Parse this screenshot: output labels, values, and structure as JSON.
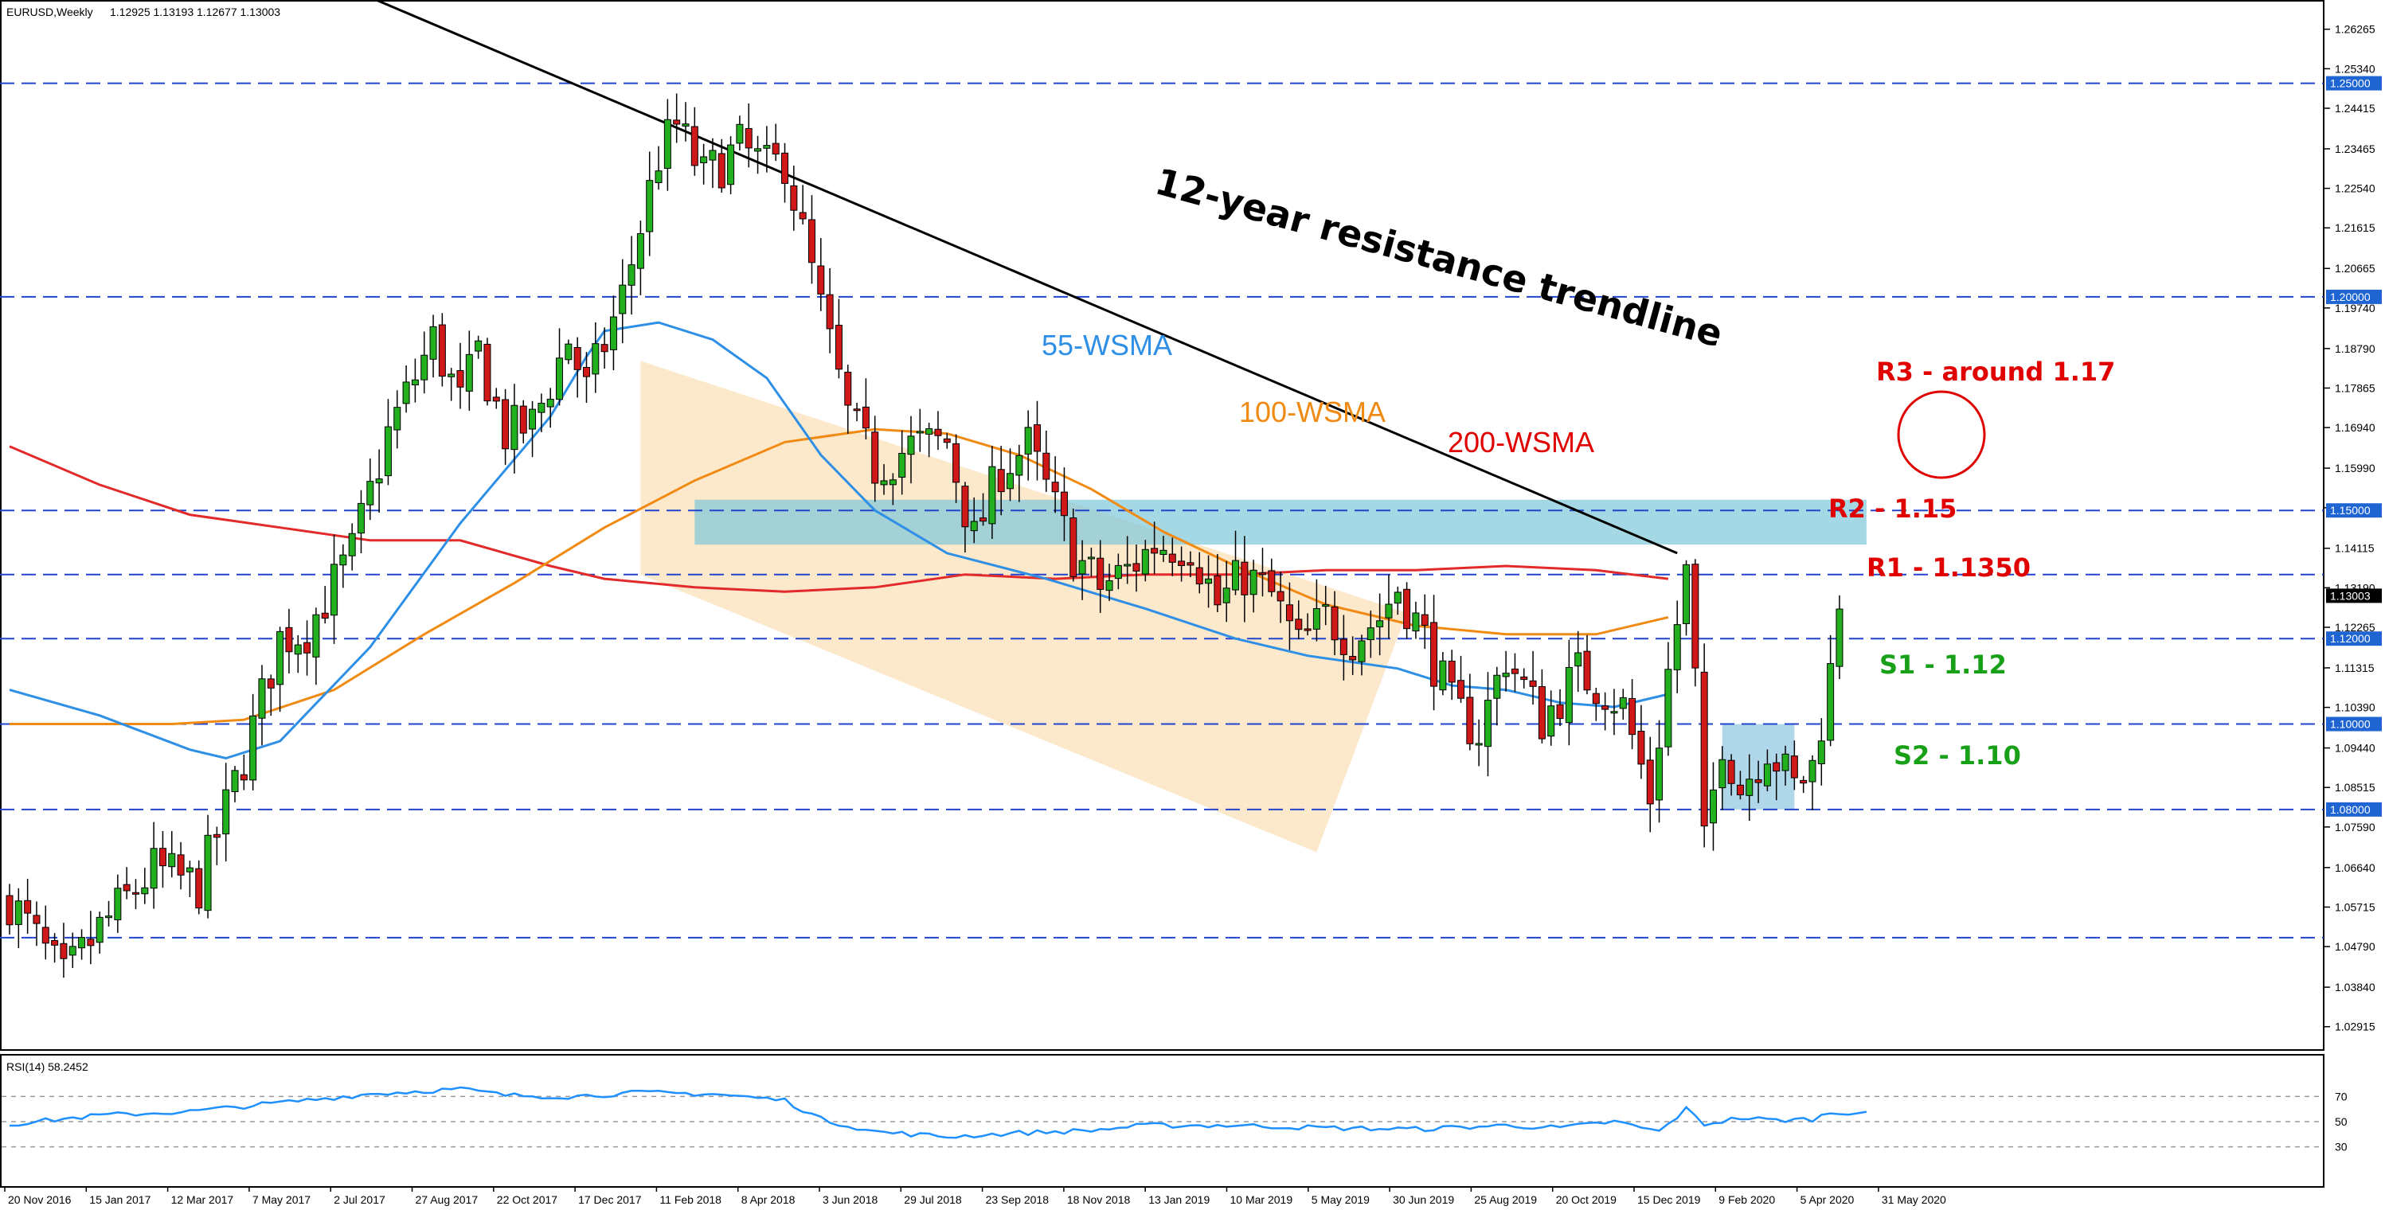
{
  "chart_header": {
    "symbol_line": "EURUSD,Weekly",
    "ohlc": "1.12925 1.13193 1.12677 1.13003"
  },
  "rsi_header": "RSI(14) 58.2452",
  "colors": {
    "bull": "#22b01e",
    "bear": "#d01818",
    "wsma55": "#2e8fe6",
    "wsma100": "#f08a12",
    "wsma200": "#e32a2a",
    "trendline": "#000000",
    "grid_dash": "#2244cc",
    "zone_resistance": "#7dc8d8",
    "zone_support": "#8ec6e0",
    "channel": "#fbe4c2",
    "rsi_line": "#1e90ff",
    "label_red": "#e00000",
    "label_green": "#19a019",
    "label_blue": "#2e8fe6",
    "label_orange": "#f08a12"
  },
  "chart_data": {
    "type": "candlestick",
    "title": "EURUSD,Weekly",
    "interval": "weekly",
    "ylim": [
      1.025,
      1.268
    ],
    "y_ticks": [
      "1.26265",
      "1.25340",
      "1.24415",
      "1.23465",
      "1.22540",
      "1.21615",
      "1.20665",
      "1.19740",
      "1.18790",
      "1.17865",
      "1.16940",
      "1.15990",
      "1.15065",
      "1.14115",
      "1.13190",
      "1.12265",
      "1.11315",
      "1.10390",
      "1.09440",
      "1.08515",
      "1.07590",
      "1.06640",
      "1.05715",
      "1.04790",
      "1.03840",
      "1.02915"
    ],
    "x_ticks": [
      "20 Nov 2016",
      "15 Jan 2017",
      "12 Mar 2017",
      "7 May 2017",
      "2 Jul 2017",
      "27 Aug 2017",
      "22 Oct 2017",
      "17 Dec 2017",
      "11 Feb 2018",
      "8 Apr 2018",
      "3 Jun 2018",
      "29 Jul 2018",
      "23 Sep 2018",
      "18 Nov 2018",
      "13 Jan 2019",
      "10 Mar 2019",
      "5 May 2019",
      "30 Jun 2019",
      "25 Aug 2019",
      "20 Oct 2019",
      "15 Dec 2019",
      "9 Feb 2020",
      "5 Apr 2020",
      "31 May 2020"
    ],
    "horizontal_levels": [
      {
        "value": 1.25,
        "label": "1.25000"
      },
      {
        "value": 1.2,
        "label": "1.20000"
      },
      {
        "value": 1.15,
        "label": "1.15000"
      },
      {
        "value": 1.135,
        "label": ""
      },
      {
        "value": 1.12,
        "label": "1.12000"
      },
      {
        "value": 1.1,
        "label": "1.10000"
      },
      {
        "value": 1.08,
        "label": "1.08000"
      },
      {
        "value": 1.05,
        "label": ""
      }
    ],
    "current_price": "1.13003",
    "annotations": {
      "trendline": "12-year resistance trendline",
      "wsma55": "55-WSMA",
      "wsma100": "100-WSMA",
      "wsma200": "200-WSMA",
      "r3": "R3 - around 1.17",
      "r2": "R2 - 1.15",
      "r1": "R1 - 1.1350",
      "s1": "S1 - 1.12",
      "s2": "S2 - 1.10"
    },
    "trendline_points": [
      {
        "week": 0,
        "price": 1.306
      },
      {
        "week": 185,
        "price": 1.14
      }
    ],
    "anchors": [
      [
        0,
        1.059
      ],
      [
        6,
        1.04
      ],
      [
        10,
        1.052
      ],
      [
        16,
        1.066
      ],
      [
        21,
        1.062
      ],
      [
        26,
        1.092
      ],
      [
        30,
        1.12
      ],
      [
        33,
        1.122
      ],
      [
        38,
        1.14
      ],
      [
        42,
        1.168
      ],
      [
        47,
        1.19
      ],
      [
        50,
        1.175
      ],
      [
        52,
        1.187
      ],
      [
        55,
        1.168
      ],
      [
        58,
        1.17
      ],
      [
        62,
        1.19
      ],
      [
        64,
        1.178
      ],
      [
        68,
        1.2
      ],
      [
        72,
        1.233
      ],
      [
        74,
        1.24
      ],
      [
        77,
        1.228
      ],
      [
        81,
        1.235
      ],
      [
        84,
        1.23
      ],
      [
        86,
        1.232
      ],
      [
        90,
        1.197
      ],
      [
        93,
        1.172
      ],
      [
        96,
        1.16
      ],
      [
        100,
        1.165
      ],
      [
        104,
        1.166
      ],
      [
        107,
        1.143
      ],
      [
        110,
        1.16
      ],
      [
        113,
        1.165
      ],
      [
        115,
        1.155
      ],
      [
        118,
        1.14
      ],
      [
        121,
        1.132
      ],
      [
        124,
        1.136
      ],
      [
        127,
        1.142
      ],
      [
        131,
        1.142
      ],
      [
        134,
        1.128
      ],
      [
        137,
        1.135
      ],
      [
        140,
        1.13
      ],
      [
        143,
        1.118
      ],
      [
        146,
        1.125
      ],
      [
        149,
        1.12
      ],
      [
        152,
        1.125
      ],
      [
        154,
        1.132
      ],
      [
        157,
        1.12
      ],
      [
        160,
        1.104
      ],
      [
        163,
        1.098
      ],
      [
        166,
        1.116
      ],
      [
        170,
        1.101
      ],
      [
        174,
        1.112
      ],
      [
        177,
        1.108
      ],
      [
        179,
        1.104
      ],
      [
        182,
        1.083
      ],
      [
        184,
        1.112
      ],
      [
        186,
        1.135
      ],
      [
        187,
        1.11
      ],
      [
        188,
        1.071
      ],
      [
        190,
        1.097
      ],
      [
        192,
        1.085
      ],
      [
        195,
        1.095
      ],
      [
        198,
        1.085
      ],
      [
        200,
        1.09
      ],
      [
        202,
        1.112
      ],
      [
        203,
        1.13
      ]
    ],
    "wsma55_points": [
      [
        0,
        1.108
      ],
      [
        10,
        1.102
      ],
      [
        20,
        1.094
      ],
      [
        24,
        1.092
      ],
      [
        30,
        1.096
      ],
      [
        40,
        1.118
      ],
      [
        50,
        1.147
      ],
      [
        60,
        1.172
      ],
      [
        64,
        1.186
      ],
      [
        66,
        1.192
      ],
      [
        72,
        1.194
      ],
      [
        78,
        1.19
      ],
      [
        84,
        1.181
      ],
      [
        90,
        1.163
      ],
      [
        96,
        1.15
      ],
      [
        104,
        1.14
      ],
      [
        115,
        1.134
      ],
      [
        126,
        1.127
      ],
      [
        136,
        1.12
      ],
      [
        144,
        1.116
      ],
      [
        154,
        1.113
      ],
      [
        160,
        1.109
      ],
      [
        166,
        1.108
      ],
      [
        172,
        1.105
      ],
      [
        178,
        1.104
      ],
      [
        184,
        1.107
      ]
    ],
    "wsma100_points": [
      [
        0,
        1.1
      ],
      [
        10,
        1.1
      ],
      [
        18,
        1.1
      ],
      [
        26,
        1.101
      ],
      [
        36,
        1.108
      ],
      [
        46,
        1.121
      ],
      [
        56,
        1.133
      ],
      [
        66,
        1.146
      ],
      [
        76,
        1.157
      ],
      [
        86,
        1.166
      ],
      [
        96,
        1.169
      ],
      [
        104,
        1.168
      ],
      [
        112,
        1.163
      ],
      [
        120,
        1.155
      ],
      [
        128,
        1.145
      ],
      [
        136,
        1.137
      ],
      [
        146,
        1.128
      ],
      [
        156,
        1.123
      ],
      [
        166,
        1.121
      ],
      [
        176,
        1.121
      ],
      [
        184,
        1.125
      ]
    ],
    "wsma200_points": [
      [
        0,
        1.165
      ],
      [
        10,
        1.156
      ],
      [
        20,
        1.149
      ],
      [
        30,
        1.146
      ],
      [
        40,
        1.143
      ],
      [
        50,
        1.143
      ],
      [
        60,
        1.137
      ],
      [
        66,
        1.134
      ],
      [
        76,
        1.132
      ],
      [
        86,
        1.131
      ],
      [
        96,
        1.132
      ],
      [
        106,
        1.135
      ],
      [
        116,
        1.134
      ],
      [
        126,
        1.135
      ],
      [
        136,
        1.135
      ],
      [
        146,
        1.136
      ],
      [
        156,
        1.136
      ],
      [
        166,
        1.137
      ],
      [
        176,
        1.136
      ],
      [
        184,
        1.134
      ]
    ],
    "channel_polygon": [
      [
        70,
        1.185
      ],
      [
        155,
        1.126
      ],
      [
        145,
        1.07
      ],
      [
        70,
        1.135
      ]
    ],
    "rsi": {
      "label": "RSI(14) 58.2452",
      "ylim": [
        0,
        100
      ],
      "levels": [
        70,
        50,
        30
      ],
      "tick_labels": [
        "70",
        "50",
        "30"
      ],
      "anchors": [
        [
          0,
          48
        ],
        [
          10,
          55
        ],
        [
          20,
          58
        ],
        [
          30,
          65
        ],
        [
          40,
          72
        ],
        [
          50,
          76
        ],
        [
          55,
          71
        ],
        [
          62,
          70
        ],
        [
          70,
          73
        ],
        [
          78,
          72
        ],
        [
          86,
          67
        ],
        [
          90,
          52
        ],
        [
          96,
          42
        ],
        [
          104,
          38
        ],
        [
          112,
          41
        ],
        [
          120,
          43
        ],
        [
          126,
          47
        ],
        [
          136,
          47
        ],
        [
          146,
          45
        ],
        [
          156,
          44
        ],
        [
          166,
          47
        ],
        [
          172,
          45
        ],
        [
          178,
          50
        ],
        [
          183,
          42
        ],
        [
          186,
          60
        ],
        [
          188,
          48
        ],
        [
          192,
          53
        ],
        [
          196,
          51
        ],
        [
          200,
          52
        ],
        [
          202,
          57
        ],
        [
          206,
          58
        ]
      ]
    }
  }
}
